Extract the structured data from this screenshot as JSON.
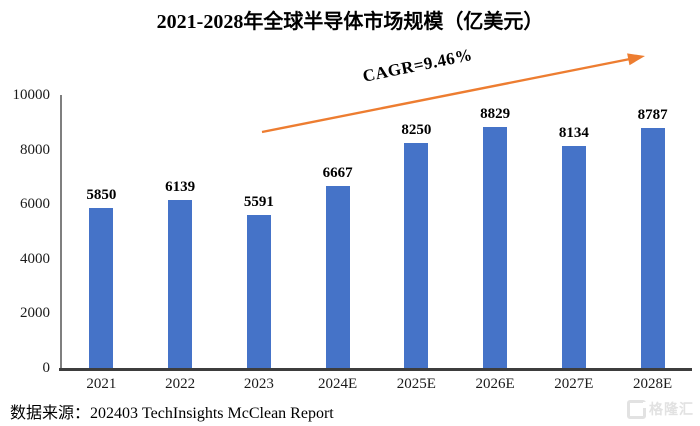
{
  "chart_data": {
    "type": "bar",
    "title": "2021-2028年全球半导体市场规模（亿美元）",
    "categories": [
      "2021",
      "2022",
      "2023",
      "2024E",
      "2025E",
      "2026E",
      "2027E",
      "2028E"
    ],
    "values": [
      5850,
      6139,
      5591,
      6667,
      8250,
      8829,
      8134,
      8787
    ],
    "xlabel": "",
    "ylabel": "",
    "ylim": [
      0,
      10000
    ],
    "yticks": [
      0,
      2000,
      4000,
      6000,
      8000,
      10000
    ],
    "grid": false,
    "legend": "none",
    "bar_color": "#4573C8",
    "annotation": {
      "text": "CAGR=9.46%",
      "arrow_color": "#ED7D31"
    }
  },
  "footer": {
    "source": "数据来源：202403 TechInsights McClean Report"
  },
  "watermark": {
    "text": "格隆汇"
  }
}
